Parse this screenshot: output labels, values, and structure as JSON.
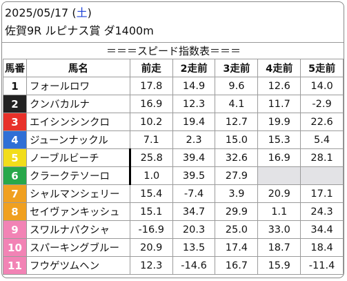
{
  "header": {
    "date": "2025/05/17",
    "dow_open": "(",
    "dow": "土",
    "dow_close": ")",
    "race": "佐賀9R ルピナス賞 ダ1400m"
  },
  "subtitle": "＝＝＝スピード指数表＝＝＝",
  "columns": [
    "馬番",
    "馬名",
    "前走",
    "2走前",
    "3走前",
    "4走前",
    "5走前"
  ],
  "rows": [
    {
      "num": "1",
      "name": "フォールロワ",
      "v": [
        "17.8",
        "14.9",
        "9.6",
        "12.6",
        "14.0"
      ],
      "bg": "#ffffff",
      "fg": "#111111"
    },
    {
      "num": "2",
      "name": "クンバカルナ",
      "v": [
        "16.9",
        "12.3",
        "4.1",
        "11.7",
        "-2.9"
      ],
      "bg": "#222222",
      "fg": "#ffffff"
    },
    {
      "num": "3",
      "name": "エイシンシンクロ",
      "v": [
        "10.2",
        "19.4",
        "12.7",
        "19.9",
        "22.6"
      ],
      "bg": "#e8312a",
      "fg": "#ffffff"
    },
    {
      "num": "4",
      "name": "ジューンナックル",
      "v": [
        "7.1",
        "2.3",
        "15.0",
        "15.3",
        "5.4"
      ],
      "bg": "#2f6fd6",
      "fg": "#ffffff"
    },
    {
      "num": "5",
      "name": "ノーブルビーチ",
      "v": [
        "25.8",
        "39.4",
        "32.6",
        "16.9",
        "28.1"
      ],
      "bg": "#f2dd1a",
      "fg": "#ffffff"
    },
    {
      "num": "6",
      "name": "クラークテソーロ",
      "v": [
        "1.0",
        "39.5",
        "27.9",
        "",
        ""
      ],
      "bg": "#27a84a",
      "fg": "#ffffff"
    },
    {
      "num": "7",
      "name": "シャルマンシェリー",
      "v": [
        "15.4",
        "-7.4",
        "3.9",
        "20.9",
        "17.1"
      ],
      "bg": "#f0a020",
      "fg": "#ffffff"
    },
    {
      "num": "8",
      "name": "セイヴァンキッシュ",
      "v": [
        "15.1",
        "34.7",
        "29.9",
        "1.1",
        "24.3"
      ],
      "bg": "#f0a020",
      "fg": "#ffffff"
    },
    {
      "num": "9",
      "name": "スワルナパクシャ",
      "v": [
        "-16.9",
        "20.3",
        "25.0",
        "33.0",
        "34.4"
      ],
      "bg": "#f283b5",
      "fg": "#ffffff"
    },
    {
      "num": "10",
      "name": "スパーキングブルー",
      "v": [
        "20.9",
        "13.5",
        "17.4",
        "18.7",
        "18.4"
      ],
      "bg": "#f283b5",
      "fg": "#ffffff"
    },
    {
      "num": "11",
      "name": "フウゲツムヘン",
      "v": [
        "12.3",
        "-14.6",
        "16.7",
        "15.9",
        "-11.4"
      ],
      "bg": "#f283b5",
      "fg": "#ffffff"
    }
  ]
}
